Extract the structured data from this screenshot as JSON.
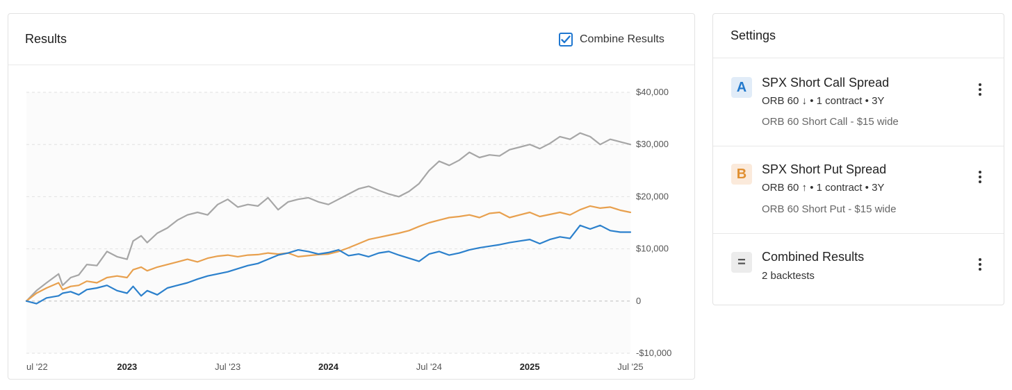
{
  "results": {
    "title": "Results",
    "combine_label": "Combine Results",
    "combine_checked": true
  },
  "settings": {
    "title": "Settings",
    "items": [
      {
        "badge": "A",
        "title": "SPX Short Call Spread",
        "subtitle": "ORB 60 ↓ • 1 contract • 3Y",
        "description": "ORB 60 Short Call - $15 wide"
      },
      {
        "badge": "B",
        "title": "SPX Short Put Spread",
        "subtitle": "ORB 60 ↑ • 1 contract • 3Y",
        "description": "ORB 60 Short Put - $15 wide"
      },
      {
        "badge": "=",
        "title": "Combined Results",
        "subtitle": "2 backtests"
      }
    ]
  },
  "chart_data": {
    "type": "line",
    "x_range": [
      2022.5,
      2025.5
    ],
    "ylim": [
      -10000,
      40000
    ],
    "y_ticks": [
      40000,
      30000,
      20000,
      10000,
      0,
      -10000
    ],
    "y_tick_labels": [
      "$40,000",
      "$30,000",
      "$20,000",
      "$10,000",
      "0",
      "-$10,000"
    ],
    "x_ticks": [
      {
        "label": "ul '22",
        "x": 2022.5,
        "bold": false
      },
      {
        "label": "2023",
        "x": 2023.0,
        "bold": true
      },
      {
        "label": "Jul '23",
        "x": 2023.5,
        "bold": false
      },
      {
        "label": "2024",
        "x": 2024.0,
        "bold": true
      },
      {
        "label": "Jul '24",
        "x": 2024.5,
        "bold": false
      },
      {
        "label": "2025",
        "x": 2025.0,
        "bold": true
      },
      {
        "label": "Jul '25",
        "x": 2025.5,
        "bold": false
      }
    ],
    "series": [
      {
        "name": "Combined Results",
        "color": "#a6a6a6",
        "x": [
          2022.5,
          2022.55,
          2022.6,
          2022.66,
          2022.68,
          2022.72,
          2022.76,
          2022.8,
          2022.85,
          2022.9,
          2022.95,
          2023.0,
          2023.03,
          2023.07,
          2023.1,
          2023.15,
          2023.2,
          2023.25,
          2023.3,
          2023.35,
          2023.4,
          2023.45,
          2023.5,
          2023.55,
          2023.6,
          2023.65,
          2023.7,
          2023.75,
          2023.8,
          2023.85,
          2023.9,
          2023.95,
          2024.0,
          2024.05,
          2024.1,
          2024.15,
          2024.2,
          2024.25,
          2024.3,
          2024.35,
          2024.4,
          2024.45,
          2024.5,
          2024.55,
          2024.6,
          2024.65,
          2024.7,
          2024.75,
          2024.8,
          2024.85,
          2024.9,
          2024.95,
          2025.0,
          2025.05,
          2025.1,
          2025.15,
          2025.2,
          2025.25,
          2025.3,
          2025.35,
          2025.4,
          2025.45,
          2025.5
        ],
        "values": [
          0,
          2000,
          3500,
          5200,
          3000,
          4500,
          5000,
          7000,
          6800,
          9500,
          8500,
          8000,
          11500,
          12500,
          11200,
          13000,
          14000,
          15500,
          16500,
          17000,
          16500,
          18500,
          19500,
          18000,
          18500,
          18200,
          19800,
          17500,
          19000,
          19500,
          19800,
          19000,
          18500,
          19500,
          20500,
          21500,
          22000,
          21200,
          20500,
          20000,
          21000,
          22500,
          25000,
          26800,
          26000,
          27000,
          28500,
          27500,
          28000,
          27800,
          29000,
          29500,
          30000,
          29200,
          30200,
          31500,
          31000,
          32200,
          31500,
          30000,
          31000,
          30500,
          30000
        ]
      },
      {
        "name": "SPX Short Put Spread",
        "color": "#e8a04e",
        "x": [
          2022.5,
          2022.55,
          2022.6,
          2022.66,
          2022.68,
          2022.72,
          2022.76,
          2022.8,
          2022.85,
          2022.9,
          2022.95,
          2023.0,
          2023.03,
          2023.07,
          2023.1,
          2023.15,
          2023.2,
          2023.25,
          2023.3,
          2023.35,
          2023.4,
          2023.45,
          2023.5,
          2023.55,
          2023.6,
          2023.65,
          2023.7,
          2023.75,
          2023.8,
          2023.85,
          2023.9,
          2023.95,
          2024.0,
          2024.05,
          2024.1,
          2024.15,
          2024.2,
          2024.25,
          2024.3,
          2024.35,
          2024.4,
          2024.45,
          2024.5,
          2024.55,
          2024.6,
          2024.65,
          2024.7,
          2024.75,
          2024.8,
          2024.85,
          2024.9,
          2024.95,
          2025.0,
          2025.05,
          2025.1,
          2025.15,
          2025.2,
          2025.25,
          2025.3,
          2025.35,
          2025.4,
          2025.45,
          2025.5
        ],
        "values": [
          0,
          1500,
          2500,
          3500,
          2200,
          2800,
          3000,
          3800,
          3500,
          4500,
          4800,
          4500,
          6000,
          6500,
          5800,
          6500,
          7000,
          7500,
          8000,
          7500,
          8200,
          8600,
          8800,
          8500,
          8800,
          8900,
          9200,
          9000,
          9200,
          8500,
          8700,
          8900,
          9000,
          9500,
          10200,
          11000,
          11800,
          12200,
          12600,
          13000,
          13500,
          14300,
          15000,
          15500,
          16000,
          16200,
          16500,
          16000,
          16800,
          17000,
          16000,
          16500,
          17000,
          16200,
          16600,
          17000,
          16500,
          17500,
          18200,
          17800,
          18000,
          17400,
          17000
        ]
      },
      {
        "name": "SPX Short Call Spread",
        "color": "#2b80cc",
        "x": [
          2022.5,
          2022.55,
          2022.6,
          2022.66,
          2022.68,
          2022.72,
          2022.76,
          2022.8,
          2022.85,
          2022.9,
          2022.95,
          2023.0,
          2023.03,
          2023.07,
          2023.1,
          2023.15,
          2023.2,
          2023.25,
          2023.3,
          2023.35,
          2023.4,
          2023.45,
          2023.5,
          2023.55,
          2023.6,
          2023.65,
          2023.7,
          2023.75,
          2023.8,
          2023.85,
          2023.9,
          2023.95,
          2024.0,
          2024.05,
          2024.1,
          2024.15,
          2024.2,
          2024.25,
          2024.3,
          2024.35,
          2024.4,
          2024.45,
          2024.5,
          2024.55,
          2024.6,
          2024.65,
          2024.7,
          2024.75,
          2024.8,
          2024.85,
          2024.9,
          2024.95,
          2025.0,
          2025.05,
          2025.1,
          2025.15,
          2025.2,
          2025.25,
          2025.3,
          2025.35,
          2025.4,
          2025.45,
          2025.5
        ],
        "values": [
          0,
          -500,
          600,
          1000,
          1500,
          1800,
          1200,
          2200,
          2500,
          3000,
          2000,
          1500,
          2800,
          1000,
          2000,
          1200,
          2500,
          3000,
          3500,
          4200,
          4800,
          5200,
          5600,
          6200,
          6800,
          7200,
          8000,
          8800,
          9200,
          9800,
          9500,
          9000,
          9300,
          9800,
          8700,
          9000,
          8500,
          9200,
          9500,
          8800,
          8200,
          7600,
          9000,
          9500,
          8800,
          9200,
          9800,
          10200,
          10500,
          10800,
          11200,
          11500,
          11800,
          11000,
          11800,
          12300,
          12000,
          14500,
          13800,
          14500,
          13500,
          13200,
          13200
        ]
      }
    ]
  }
}
